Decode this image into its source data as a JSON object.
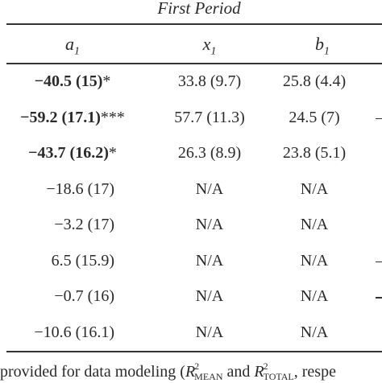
{
  "table": {
    "period_title": "First Period",
    "headers": {
      "a": {
        "var": "a",
        "sub": "1"
      },
      "x": {
        "var": "x",
        "sub": "1"
      },
      "b": {
        "var": "b",
        "sub": "1"
      }
    },
    "rows": [
      {
        "a_value": "−40.5 (15)",
        "a_stars": "*",
        "a_bold": true,
        "x": "33.8 (9.7)",
        "b": "25.8 (4.4)",
        "edge_dash": false
      },
      {
        "a_value": "−59.2 (17.1)",
        "a_stars": "***",
        "a_bold": true,
        "x": "57.7 (11.3)",
        "b": "24.5 (7)",
        "edge_dash": true
      },
      {
        "a_value": "−43.7 (16.2)",
        "a_stars": "*",
        "a_bold": true,
        "x": "26.3 (8.9)",
        "b": "23.8 (5.1)",
        "edge_dash": false
      },
      {
        "a_value": "−18.6 (17)",
        "a_stars": "",
        "a_bold": false,
        "x": "N/A",
        "b": "N/A",
        "edge_dash": false
      },
      {
        "a_value": "−3.2 (17)",
        "a_stars": "",
        "a_bold": false,
        "x": "N/A",
        "b": "N/A",
        "edge_dash": false
      },
      {
        "a_value": "6.5 (15.9)",
        "a_stars": "",
        "a_bold": false,
        "x": "N/A",
        "b": "N/A",
        "edge_dash": true
      },
      {
        "a_value": "−0.7 (16)",
        "a_stars": "",
        "a_bold": false,
        "x": "N/A",
        "b": "N/A",
        "edge_dash": true
      },
      {
        "a_value": "−10.6 (16.1)",
        "a_stars": "",
        "a_bold": false,
        "x": "N/A",
        "b": "N/A",
        "edge_dash": false
      }
    ]
  },
  "footnote": {
    "prefix": "provided for data modeling (",
    "r1": "R",
    "r1_sup": "2",
    "r1_sub": "MEAN",
    "middle": " and ",
    "r2": "R",
    "r2_sup": "2",
    "r2_sub": "TOTAL",
    "suffix": ", respe"
  }
}
